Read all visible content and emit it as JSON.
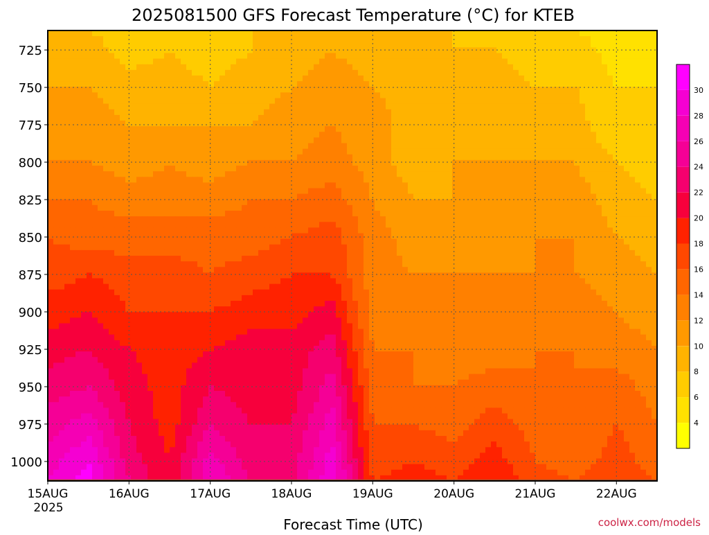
{
  "chart_data": {
    "type": "heatmap",
    "title": "2025081500 GFS Forecast Temperature (°C) for KTEB",
    "xlabel": "Forecast Time (UTC)",
    "ylabel": "",
    "credit": "coolwx.com/models",
    "x_tick_labels": [
      "15AUG",
      "16AUG",
      "17AUG",
      "18AUG",
      "19AUG",
      "20AUG",
      "21AUG",
      "22AUG"
    ],
    "x_year_label": "2025",
    "x_range": [
      "2025-08-15T00",
      "2025-08-22T12"
    ],
    "x_ticks": [
      "2025-08-15",
      "2025-08-16",
      "2025-08-17",
      "2025-08-18",
      "2025-08-19",
      "2025-08-20",
      "2025-08-21",
      "2025-08-22"
    ],
    "y_tick_labels": [
      "725",
      "750",
      "775",
      "800",
      "825",
      "850",
      "875",
      "900",
      "925",
      "950",
      "975",
      "1000"
    ],
    "y_ticks": [
      725,
      750,
      775,
      800,
      825,
      850,
      875,
      900,
      925,
      950,
      975,
      1000
    ],
    "y_range": [
      712,
      1013
    ],
    "y_inverted": true,
    "grid": true,
    "colorbar": {
      "tick_labels": [
        "4",
        "6",
        "8",
        "10",
        "12",
        "14",
        "16",
        "18",
        "20",
        "22",
        "24",
        "26",
        "28",
        "30"
      ],
      "levels": [
        2,
        4,
        6,
        8,
        10,
        12,
        14,
        16,
        18,
        20,
        22,
        24,
        26,
        28,
        30,
        32
      ],
      "colors": [
        "#ffff00",
        "#ffe100",
        "#ffcc00",
        "#ffb300",
        "#ff9900",
        "#ff8000",
        "#ff6600",
        "#ff4800",
        "#ff2200",
        "#f7003c",
        "#f5006e",
        "#f50096",
        "#f500b4",
        "#f500d2",
        "#ff00ff"
      ]
    },
    "terrain_color": "#a0522d",
    "surface_pressure_hpa": 1012,
    "times": [
      "2025-08-15T00",
      "2025-08-15T12",
      "2025-08-16T00",
      "2025-08-16T12",
      "2025-08-17T00",
      "2025-08-17T12",
      "2025-08-18T00",
      "2025-08-18T12",
      "2025-08-19T00",
      "2025-08-19T12",
      "2025-08-20T00",
      "2025-08-20T12",
      "2025-08-21T00",
      "2025-08-21T12",
      "2025-08-22T00",
      "2025-08-22T12"
    ],
    "levels_hpa": [
      712,
      725,
      750,
      775,
      800,
      825,
      850,
      875,
      900,
      925,
      950,
      975,
      1000,
      1013
    ],
    "temperature_c": [
      [
        9,
        8,
        7,
        8,
        7,
        8,
        9,
        10,
        8,
        8,
        8,
        7,
        7,
        6,
        5,
        6
      ],
      [
        9,
        9,
        7,
        8,
        7,
        8,
        9,
        10,
        9,
        8,
        8,
        8,
        7,
        7,
        5,
        6
      ],
      [
        10,
        10,
        9,
        9,
        8,
        9,
        10,
        11,
        10,
        9,
        9,
        9,
        8,
        8,
        6,
        6
      ],
      [
        11,
        11,
        10,
        10,
        10,
        10,
        11,
        12,
        11,
        9,
        9,
        9,
        9,
        9,
        6,
        7
      ],
      [
        12,
        12,
        11,
        12,
        11,
        12,
        12,
        13,
        11,
        9,
        10,
        10,
        10,
        10,
        8,
        7
      ],
      [
        14,
        14,
        13,
        13,
        13,
        14,
        14,
        15,
        12,
        10,
        10,
        11,
        11,
        11,
        9,
        8
      ],
      [
        16,
        15,
        15,
        15,
        15,
        15,
        16,
        17,
        13,
        11,
        11,
        11,
        12,
        12,
        10,
        9
      ],
      [
        17,
        18,
        17,
        17,
        16,
        17,
        18,
        18,
        13,
        12,
        12,
        12,
        12,
        12,
        11,
        10
      ],
      [
        19,
        20,
        18,
        18,
        18,
        19,
        19,
        21,
        13,
        13,
        12,
        13,
        13,
        13,
        12,
        11
      ],
      [
        21,
        22,
        20,
        19,
        20,
        21,
        21,
        23,
        14,
        14,
        13,
        13,
        14,
        14,
        13,
        12
      ],
      [
        23,
        24,
        21,
        19,
        22,
        21,
        21,
        25,
        15,
        14,
        14,
        15,
        14,
        14,
        15,
        13
      ],
      [
        25,
        27,
        22,
        19,
        24,
        22,
        22,
        27,
        16,
        16,
        15,
        17,
        15,
        14,
        16,
        14
      ],
      [
        27,
        30,
        23,
        20,
        27,
        23,
        23,
        29,
        17,
        18,
        17,
        19,
        16,
        15,
        17,
        15
      ],
      [
        28,
        31,
        24,
        20,
        28,
        24,
        23,
        30,
        18,
        19,
        18,
        20,
        17,
        16,
        18,
        16
      ]
    ]
  }
}
